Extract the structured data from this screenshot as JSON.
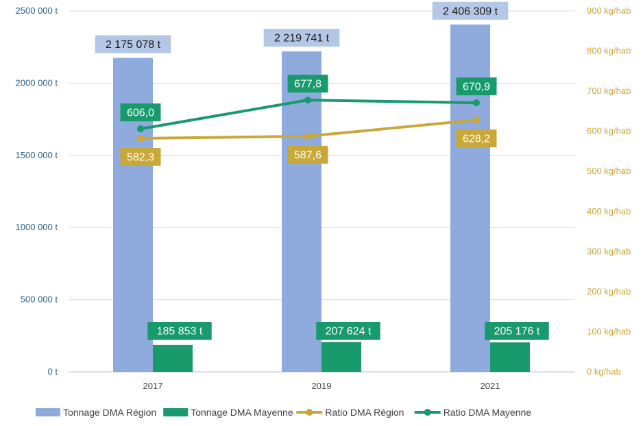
{
  "chart_data": {
    "type": "bar+line",
    "categories": [
      "2017",
      "2019",
      "2021"
    ],
    "bar_series": [
      {
        "name": "Tonnage DMA Région",
        "color": "#8faadc",
        "values": [
          2175078,
          2219741,
          2406309
        ],
        "labels": [
          "2 175 078 t",
          "2 219 741 t",
          "2 406 309 t"
        ],
        "label_bg": "#b4c7e7",
        "label_color": "#1a1a1a"
      },
      {
        "name": "Tonnage DMA Mayenne",
        "color": "#189a6c",
        "values": [
          185853,
          207624,
          205176
        ],
        "labels": [
          "185 853 t",
          "207 624 t",
          "205 176 t"
        ],
        "label_bg": "#189a6c",
        "label_color": "#ffffff"
      }
    ],
    "line_series": [
      {
        "name": "Ratio DMA Région",
        "color": "#c9a83a",
        "values": [
          582.3,
          587.6,
          628.2
        ],
        "labels": [
          "582,3",
          "587,6",
          "628,2"
        ],
        "label_bg": "#c9a83a",
        "label_color": "#ffffff",
        "label_side": "below"
      },
      {
        "name": "Ratio DMA Mayenne",
        "color": "#189a6c",
        "values": [
          606.0,
          677.8,
          670.9
        ],
        "labels": [
          "606,0",
          "677,8",
          "670,9"
        ],
        "label_bg": "#189a6c",
        "label_color": "#ffffff",
        "label_side": "above"
      }
    ],
    "y_left": {
      "range": [
        0,
        2500000
      ],
      "ticks": [
        0,
        500000,
        1000000,
        1500000,
        2000000,
        2500000
      ],
      "tick_labels": [
        "0 t",
        "500 000 t",
        "1000 000 t",
        "1500 000 t",
        "2000 000 t",
        "2500 000 t"
      ],
      "color": "#2e5f8a"
    },
    "y_right": {
      "range": [
        0,
        900
      ],
      "ticks": [
        0,
        100,
        200,
        300,
        400,
        500,
        600,
        700,
        800,
        900
      ],
      "tick_labels": [
        "0 kg/hab",
        "100 kg/hab",
        "200 kg/hab",
        "300 kg/hab",
        "400 kg/hab",
        "500 kg/hab",
        "600 kg/hab",
        "700 kg/hab",
        "800 kg/hab",
        "900 kg/hab"
      ],
      "color": "#c9a83a"
    },
    "grid": true,
    "legend_position": "bottom",
    "legend": [
      {
        "label": "Tonnage DMA Région",
        "kind": "box",
        "color": "#8faadc"
      },
      {
        "label": "Tonnage DMA Mayenne",
        "kind": "box",
        "color": "#189a6c"
      },
      {
        "label": "Ratio DMA Région",
        "kind": "line",
        "color": "#c9a83a"
      },
      {
        "label": "Ratio DMA Mayenne",
        "kind": "line",
        "color": "#189a6c"
      }
    ]
  }
}
